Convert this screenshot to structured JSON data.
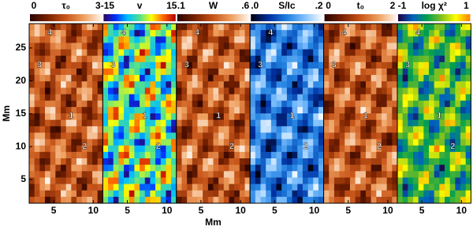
{
  "chart_data": [
    {
      "type": "heatmap",
      "title": "τ₀",
      "clim": [
        0,
        3
      ],
      "cticks": [
        0,
        3
      ],
      "colors": [
        "#2a0500",
        "#7a2200",
        "#c8561a",
        "#efa060",
        "#fff6ee"
      ],
      "xlim": [
        1.9,
        11.2
      ],
      "xticks": [
        5,
        10
      ],
      "ylim": [
        1.4,
        28.7
      ],
      "yticks": [
        5,
        10,
        15,
        20,
        25
      ],
      "ylabel": "Mm",
      "points": [
        {
          "label": "4",
          "x": 4.5,
          "y": 27.3
        },
        {
          "label": "3",
          "x": 3.2,
          "y": 22.4
        },
        {
          "label": "1",
          "x": 7.2,
          "y": 14.7
        },
        {
          "label": "2",
          "x": 8.9,
          "y": 10.0
        }
      ]
    },
    {
      "type": "heatmap",
      "title": "v",
      "clim": [
        -15,
        15
      ],
      "cticks": [
        -15,
        15
      ],
      "colors": [
        "#30005a",
        "#0030ff",
        "#00c0ff",
        "#50e090",
        "#ffff00",
        "#ff6000",
        "#b00000"
      ],
      "xlim": [
        1.9,
        11.2
      ],
      "xticks": [
        5,
        10
      ],
      "points": [
        {
          "label": "4",
          "x": 4.5,
          "y": 27.3
        },
        {
          "label": "3",
          "x": 3.2,
          "y": 22.4
        },
        {
          "label": "1",
          "x": 7.2,
          "y": 14.7
        },
        {
          "label": "2",
          "x": 8.9,
          "y": 10.0
        }
      ]
    },
    {
      "type": "heatmap",
      "title": "W",
      "clim": [
        0.1,
        0.6
      ],
      "cticks": [
        {
          "value": 0.1,
          "label": ".1"
        },
        {
          "value": 0.6,
          "label": ".6"
        }
      ],
      "colors": [
        "#2a0500",
        "#7a2200",
        "#c8561a",
        "#efa060",
        "#fff6ee"
      ],
      "xlim": [
        1.9,
        11.2
      ],
      "xticks": [
        5,
        10
      ],
      "xlabel": "Mm",
      "points": [
        {
          "label": "4",
          "x": 4.5,
          "y": 27.3
        },
        {
          "label": "3",
          "x": 3.2,
          "y": 22.4
        },
        {
          "label": "1",
          "x": 7.2,
          "y": 14.7
        },
        {
          "label": "2",
          "x": 8.9,
          "y": 10.0
        }
      ]
    },
    {
      "type": "heatmap",
      "title": "S/Ic",
      "clim": [
        0,
        0.2
      ],
      "cticks": [
        {
          "value": 0,
          "label": ".0"
        },
        {
          "value": 0.2,
          "label": ".2"
        }
      ],
      "colors": [
        "#000010",
        "#0030a0",
        "#2080e0",
        "#80c0ff",
        "#ffffff"
      ],
      "xlim": [
        1.9,
        11.2
      ],
      "xticks": [
        5,
        10
      ],
      "points": [
        {
          "label": "4",
          "x": 4.5,
          "y": 27.3
        },
        {
          "label": "3",
          "x": 3.2,
          "y": 22.4
        },
        {
          "label": "1",
          "x": 7.2,
          "y": 14.7
        },
        {
          "label": "2",
          "x": 8.9,
          "y": 10.0
        }
      ]
    },
    {
      "type": "heatmap",
      "title": "t₀",
      "clim": [
        0,
        2
      ],
      "cticks": [
        0,
        2
      ],
      "colors": [
        "#2a0500",
        "#7a2200",
        "#c8561a",
        "#efa060",
        "#fff6ee"
      ],
      "xlim": [
        1.9,
        11.2
      ],
      "xticks": [
        5,
        10
      ],
      "points": [
        {
          "label": "4",
          "x": 4.5,
          "y": 27.3
        },
        {
          "label": "3",
          "x": 3.2,
          "y": 22.4
        },
        {
          "label": "1",
          "x": 7.2,
          "y": 14.7
        },
        {
          "label": "2",
          "x": 8.9,
          "y": 10.0
        }
      ]
    },
    {
      "type": "heatmap",
      "title": "log χ²",
      "clim": [
        -1,
        1
      ],
      "cticks": [
        -1,
        1
      ],
      "colors": [
        "#200040",
        "#0060c0",
        "#00a050",
        "#80c020",
        "#ffff00",
        "#ff8000"
      ],
      "xlim": [
        1.9,
        11.2
      ],
      "xticks": [
        5,
        10
      ],
      "points": [
        {
          "label": "4",
          "x": 4.5,
          "y": 27.3
        },
        {
          "label": "3",
          "x": 3.2,
          "y": 22.4
        },
        {
          "label": "1",
          "x": 7.2,
          "y": 14.7
        },
        {
          "label": "2",
          "x": 8.9,
          "y": 10.0
        }
      ]
    }
  ]
}
